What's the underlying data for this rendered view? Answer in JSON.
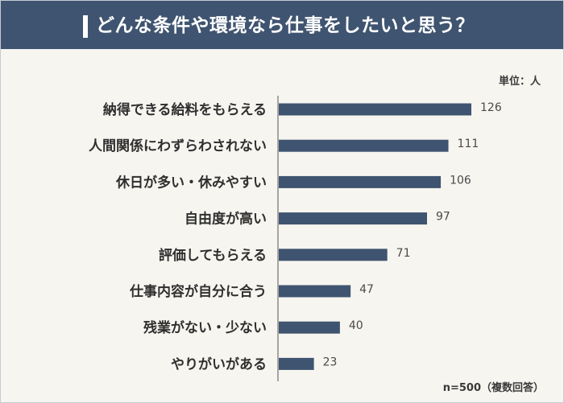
{
  "header": {
    "title": "どんな条件や環境なら仕事をしたいと思う？"
  },
  "unit_label": "単位：人",
  "note": "n=500（複数回答）",
  "colors": {
    "header_bg": "#3f5470",
    "bar": "#3f5470",
    "background": "#f7f5f0",
    "axis": "#555555"
  },
  "chart_data": {
    "type": "bar",
    "orientation": "horizontal",
    "categories": [
      "納得できる給料をもらえる",
      "人間関係にわずらわされない",
      "休日が多い・休みやすい",
      "自由度が高い",
      "評価してもらえる",
      "仕事内容が自分に合う",
      "残業がない・少ない",
      "やりがいがある"
    ],
    "values": [
      126,
      111,
      106,
      97,
      71,
      47,
      40,
      23
    ],
    "xlim": [
      0,
      126
    ],
    "grid": false,
    "data_labels": true
  }
}
